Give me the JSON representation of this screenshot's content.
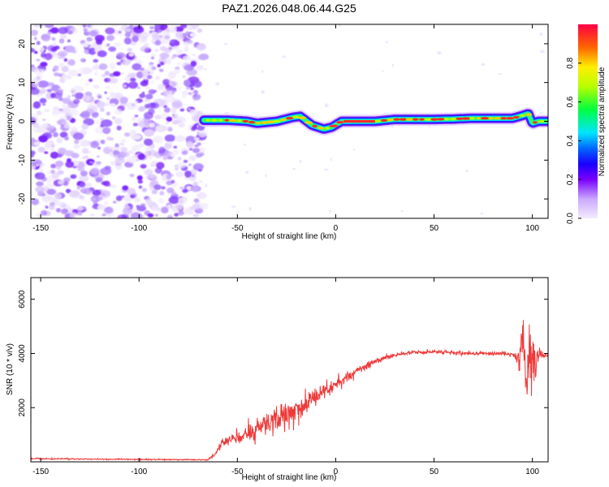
{
  "figure": {
    "title": "PAZ1.2026.048.06.44.G25"
  },
  "chart_data": [
    {
      "type": "heatmap",
      "name": "spectrogram",
      "xlabel": "Height of straight line (km)",
      "ylabel": "Frequency (Hz)",
      "xlim": [
        -155,
        108
      ],
      "ylim": [
        -25,
        25
      ],
      "xticks": [
        -150,
        -100,
        -50,
        0,
        50,
        100
      ],
      "yticks": [
        -20,
        -10,
        0,
        10,
        20
      ],
      "colorbar": {
        "label": "Normalized spectral amplitude",
        "range": [
          0,
          1
        ],
        "ticks": [
          "0.0",
          "0.2",
          "0.4",
          "0.6",
          "0.8"
        ],
        "tick_values": [
          0.0,
          0.2,
          0.4,
          0.6,
          0.8
        ]
      },
      "noise_region_x": [
        -155,
        -67
      ],
      "signal_ridge": {
        "x": [
          -67,
          -55,
          -45,
          -40,
          -30,
          -22,
          -18,
          -12,
          -6,
          -2,
          3,
          10,
          20,
          30,
          40,
          50,
          60,
          70,
          80,
          90,
          95,
          98,
          100,
          103,
          108
        ],
        "freq": [
          0.3,
          0.3,
          0.0,
          -0.5,
          0.0,
          1.0,
          1.3,
          -1.0,
          -2.0,
          -1.5,
          0.0,
          0.0,
          0.0,
          0.5,
          0.5,
          0.5,
          0.6,
          0.8,
          0.8,
          0.8,
          1.5,
          2.0,
          -0.5,
          0.0,
          0.0
        ]
      }
    },
    {
      "type": "line",
      "name": "snr",
      "xlabel": "Height of straight line (km)",
      "ylabel": "SNR (10 * v/v)",
      "xlim": [
        -155,
        108
      ],
      "ylim": [
        0,
        6800
      ],
      "xticks": [
        -150,
        -100,
        -50,
        0,
        50,
        100
      ],
      "yticks": [
        2000,
        4000,
        6000
      ],
      "series": [
        {
          "name": "SNR",
          "color": "#ee3a3a",
          "x": [
            -155,
            -140,
            -120,
            -100,
            -80,
            -65,
            -61,
            -59,
            -55,
            -50,
            -45,
            -40,
            -35,
            -30,
            -25,
            -20,
            -15,
            -10,
            -5,
            0,
            5,
            10,
            15,
            20,
            25,
            30,
            35,
            40,
            45,
            50,
            55,
            60,
            65,
            70,
            75,
            80,
            85,
            90,
            93,
            95,
            97,
            99,
            101,
            103,
            105,
            108
          ],
          "y": [
            120,
            110,
            100,
            90,
            80,
            80,
            300,
            600,
            800,
            900,
            1000,
            1200,
            1350,
            1500,
            1700,
            1900,
            2100,
            2350,
            2600,
            2850,
            3100,
            3350,
            3550,
            3700,
            3850,
            3950,
            4000,
            4050,
            4050,
            4050,
            4050,
            4050,
            4000,
            4000,
            4000,
            4000,
            4000,
            3950,
            3900,
            4500,
            2500,
            4200,
            3300,
            4100,
            3900,
            3950
          ],
          "noise_amplitude": [
            40,
            40,
            40,
            40,
            40,
            40,
            150,
            250,
            400,
            550,
            650,
            750,
            800,
            850,
            900,
            850,
            750,
            650,
            550,
            450,
            380,
            320,
            260,
            220,
            180,
            150,
            140,
            140,
            140,
            130,
            130,
            130,
            130,
            130,
            130,
            130,
            130,
            160,
            900,
            1800,
            2600,
            2700,
            2200,
            900,
            250,
            150
          ]
        }
      ]
    }
  ]
}
